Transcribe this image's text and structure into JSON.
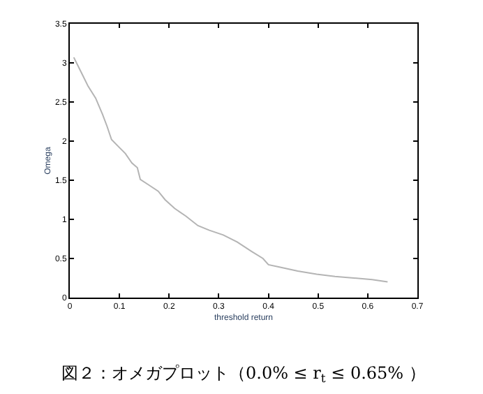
{
  "chart_data": {
    "type": "line",
    "xlabel": "threshold return",
    "ylabel": "Omega",
    "annotations": [
      "図２：オメガプロット（0.0% ≤ r$_{t}$ ≤ 0.65% ）"
    ],
    "x": [
      0.008,
      0.023,
      0.037,
      0.052,
      0.066,
      0.075,
      0.084,
      0.098,
      0.112,
      0.125,
      0.136,
      0.142,
      0.159,
      0.178,
      0.192,
      0.211,
      0.234,
      0.258,
      0.281,
      0.309,
      0.337,
      0.366,
      0.389,
      0.4,
      0.422,
      0.459,
      0.497,
      0.534,
      0.572,
      0.609,
      0.64
    ],
    "series": [
      {
        "color": "#b4b4b4",
        "values": [
          3.07,
          2.88,
          2.7,
          2.55,
          2.34,
          2.19,
          2.02,
          1.93,
          1.84,
          1.72,
          1.66,
          1.51,
          1.44,
          1.36,
          1.25,
          1.14,
          1.04,
          0.92,
          0.86,
          0.8,
          0.71,
          0.59,
          0.5,
          0.42,
          0.39,
          0.34,
          0.3,
          0.27,
          0.25,
          0.23,
          0.2
        ]
      }
    ],
    "xlim": [
      0,
      0.7
    ],
    "xticks": [
      0,
      0.1,
      0.2,
      0.3,
      0.4,
      0.5,
      0.6,
      0.7
    ],
    "ylim": [
      0,
      3.5
    ],
    "yticks": [
      0,
      0.5,
      1,
      1.5,
      2,
      2.5,
      3,
      3.5
    ],
    "legend": false,
    "marker": "none",
    "line_style": "solid"
  }
}
